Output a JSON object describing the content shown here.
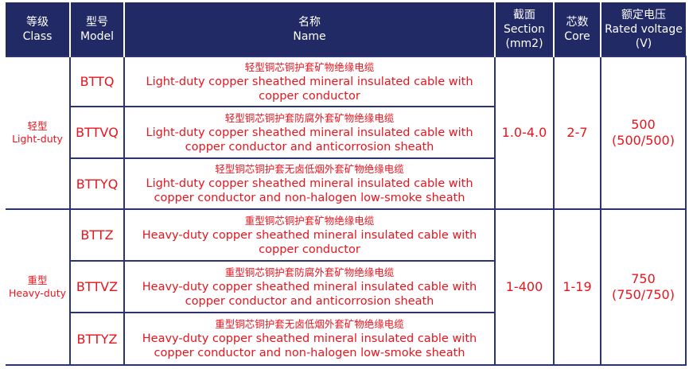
{
  "colors": {
    "header_bg": "#222a66",
    "text_red": "#e8141e",
    "grid": "#2b3470"
  },
  "headers": [
    {
      "zh": "等级",
      "en": "Class"
    },
    {
      "zh": "型号",
      "en": "Model"
    },
    {
      "zh": "名称",
      "en": "Name"
    },
    {
      "zh": "截面",
      "en": "Section",
      "en2": "(mm2)"
    },
    {
      "zh": "芯数",
      "en": "Core"
    },
    {
      "zh": "额定电压",
      "en": "Rated voltage",
      "en2": "(V)"
    }
  ],
  "groups": [
    {
      "class_zh": "轻型",
      "class_en": "Light-duty",
      "section": "1.0-4.0",
      "core": "2-7",
      "voltage": "500",
      "voltage_sub": "(500/500)",
      "rows": [
        {
          "model": "BTTQ",
          "name_zh": "轻型铜芯铜护套矿物绝缘电缆",
          "name_en": "Light-duty copper sheathed mineral insulated cable with copper conductor"
        },
        {
          "model": "BTTVQ",
          "name_zh": "轻型铜芯铜护套防腐外套矿物绝缘电缆",
          "name_en": "Light-duty copper sheathed mineral insulated cable with copper conductor and anticorrosion sheath"
        },
        {
          "model": "BTTYQ",
          "name_zh": "轻型铜芯铜护套无卤低烟外套矿物绝缘电缆",
          "name_en": "Light-duty copper sheathed mineral insulated cable with copper conductor and non-halogen low-smoke sheath"
        }
      ]
    },
    {
      "class_zh": "重型",
      "class_en": "Heavy-duty",
      "section": "1-400",
      "core": "1-19",
      "voltage": "750",
      "voltage_sub": "(750/750)",
      "rows": [
        {
          "model": "BTTZ",
          "name_zh": "重型铜芯铜护套矿物绝缘电缆",
          "name_en": "Heavy-duty copper sheathed mineral insulated cable with copper conductor"
        },
        {
          "model": "BTTVZ",
          "name_zh": "重型铜芯铜护套防腐外套矿物绝缘电缆",
          "name_en": "Heavy-duty copper sheathed mineral insulated cable with copper conductor and anticorrosion sheath"
        },
        {
          "model": "BTTYZ",
          "name_zh": "重型铜芯铜护套无卤低烟外套矿物绝缘电缆",
          "name_en": "Heavy-duty copper sheathed mineral insulated cable with copper conductor and non-halogen low-smoke sheath"
        }
      ]
    }
  ]
}
